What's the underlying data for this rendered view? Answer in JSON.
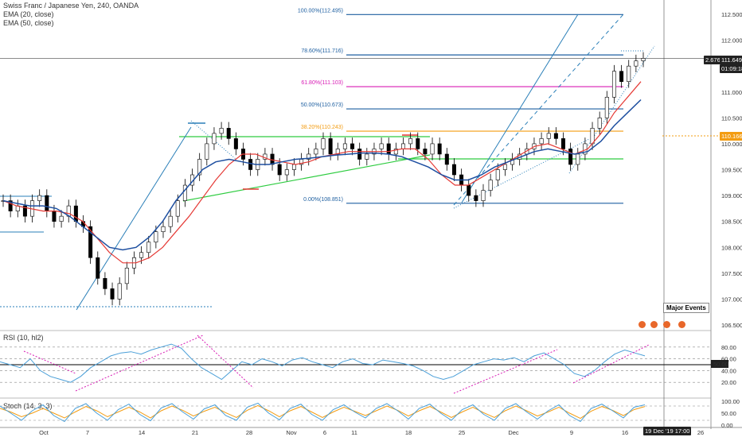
{
  "legend": {
    "symbol": "Swiss Franc / Japanese Yen, 240, OANDA",
    "ema20": "EMA (20, close)",
    "ema50": "EMA (50, close)",
    "rsi": "RSI (10, hl2)",
    "stoch": "Stoch (14, 3, 3)"
  },
  "price_badges": {
    "crosshair_price": "111.649",
    "crosshair_left": "2.676",
    "countdown": "01:09:18",
    "last_orange": "110.166"
  },
  "time_badge": "19 Dec '19   17:00",
  "major_events": "Major Events",
  "colors": {
    "up": "#000000",
    "down": "#000000",
    "ema20": "#e53935",
    "ema50": "#1e4fa0",
    "fib": "#1e5fa0",
    "fib618": "#d81bb5",
    "fib382": "#f39c12",
    "rsi": "#4a9fd8",
    "stoch_k": "#4a9fd8",
    "stoch_d": "#f39c12",
    "trend_green": "#2ecc40",
    "trend_blue": "#2a7fb8"
  },
  "chart_data": {
    "type": "candlestick",
    "title": "Swiss Franc / Japanese Yen, 240, OANDA",
    "ylim": [
      106.5,
      112.5
    ],
    "y_ticks": [
      "112.500",
      "112.000",
      "111.500",
      "111.000",
      "110.500",
      "110.000",
      "109.500",
      "109.000",
      "108.500",
      "108.000",
      "107.500",
      "107.000",
      "106.500"
    ],
    "x_tick_labels": [
      "Oct",
      "7",
      "14",
      "21",
      "28",
      "Nov",
      "6",
      "11",
      "18",
      "25",
      "Dec",
      "9",
      "16",
      "26"
    ],
    "fib_levels": [
      {
        "label": "100.00%(112.495)",
        "value": 112.495
      },
      {
        "label": "78.60%(111.716)",
        "value": 111.716
      },
      {
        "label": "61.80%(111.103)",
        "value": 111.103
      },
      {
        "label": "50.00%(110.673)",
        "value": 110.673
      },
      {
        "label": "38.20%(110.243)",
        "value": 110.243
      },
      {
        "label": "0.00%(108.851)",
        "value": 108.851
      }
    ],
    "series_close": [
      108.9,
      108.7,
      108.8,
      108.6,
      108.9,
      109.0,
      108.7,
      108.5,
      108.6,
      108.8,
      108.5,
      108.4,
      107.8,
      107.4,
      107.2,
      107.0,
      107.3,
      107.6,
      107.8,
      107.9,
      108.1,
      108.3,
      108.4,
      108.6,
      108.9,
      109.2,
      109.4,
      109.7,
      110.0,
      110.2,
      110.3,
      110.1,
      109.9,
      109.7,
      109.5,
      109.7,
      109.8,
      109.6,
      109.4,
      109.5,
      109.6,
      109.7,
      109.8,
      109.9,
      110.1,
      109.8,
      109.9,
      110.0,
      109.9,
      109.7,
      109.8,
      109.9,
      110.0,
      109.8,
      109.9,
      110.0,
      110.1,
      109.9,
      109.8,
      110.0,
      109.8,
      109.6,
      109.4,
      109.2,
      109.0,
      108.9,
      109.1,
      109.3,
      109.5,
      109.6,
      109.7,
      109.8,
      109.9,
      110.0,
      110.1,
      110.2,
      110.1,
      109.9,
      109.6,
      109.8,
      110.0,
      110.3,
      110.5,
      110.9,
      111.4,
      111.2,
      111.5,
      111.6,
      111.65
    ],
    "ema20": [
      108.9,
      108.8,
      108.75,
      108.7,
      108.7,
      108.65,
      108.5,
      108.2,
      107.9,
      107.7,
      107.7,
      107.8,
      108.0,
      108.3,
      108.6,
      108.95,
      109.3,
      109.6,
      109.8,
      109.8,
      109.7,
      109.65,
      109.6,
      109.65,
      109.75,
      109.8,
      109.85,
      109.85,
      109.85,
      109.85,
      109.9,
      109.9,
      109.7,
      109.4,
      109.2,
      109.2,
      109.35,
      109.5,
      109.65,
      109.8,
      109.95,
      110.0,
      109.9,
      109.8,
      109.9,
      110.2,
      110.6,
      110.9,
      111.2
    ],
    "ema50": [
      108.9,
      108.85,
      108.8,
      108.8,
      108.75,
      108.6,
      108.4,
      108.2,
      108.0,
      107.95,
      108.0,
      108.2,
      108.5,
      108.9,
      109.2,
      109.5,
      109.65,
      109.7,
      109.65,
      109.6,
      109.6,
      109.65,
      109.7,
      109.72,
      109.75,
      109.78,
      109.8,
      109.82,
      109.82,
      109.8,
      109.75,
      109.65,
      109.55,
      109.4,
      109.3,
      109.3,
      109.4,
      109.55,
      109.65,
      109.75,
      109.85,
      109.9,
      109.85,
      109.8,
      109.85,
      110.05,
      110.35,
      110.6,
      110.85
    ],
    "rsi_ylim": [
      0,
      100
    ],
    "rsi_ticks": [
      "80.00",
      "60.00",
      "40.00",
      "20.00"
    ],
    "rsi_current": "50.00",
    "rsi": [
      55,
      50,
      45,
      60,
      40,
      30,
      25,
      20,
      30,
      45,
      55,
      65,
      70,
      72,
      68,
      75,
      80,
      85,
      78,
      60,
      45,
      35,
      25,
      40,
      55,
      50,
      60,
      55,
      48,
      58,
      62,
      55,
      50,
      45,
      55,
      60,
      52,
      50,
      58,
      55,
      52,
      48,
      40,
      30,
      25,
      30,
      40,
      50,
      55,
      60,
      58,
      62,
      55,
      65,
      70,
      60,
      50,
      35,
      30,
      40,
      55,
      68,
      75,
      70,
      65
    ],
    "stoch_ticks": [
      "100.00",
      "50.00",
      "0.00"
    ],
    "stoch_k": [
      80,
      50,
      20,
      60,
      85,
      40,
      15,
      70,
      90,
      50,
      20,
      65,
      88,
      45,
      18,
      72,
      90,
      55,
      25,
      68,
      85,
      40,
      20,
      75,
      92,
      50,
      22,
      70,
      88,
      45,
      20,
      65,
      85,
      55,
      30,
      70,
      90,
      60,
      25,
      70,
      88,
      50,
      20,
      65,
      85,
      45,
      20,
      70,
      90,
      55,
      25,
      60,
      85,
      40,
      15,
      70,
      88,
      60,
      30,
      75,
      85
    ],
    "stoch_d": [
      70,
      55,
      35,
      50,
      70,
      50,
      30,
      55,
      78,
      60,
      35,
      55,
      75,
      55,
      30,
      60,
      80,
      62,
      38,
      58,
      75,
      52,
      32,
      62,
      82,
      60,
      35,
      60,
      78,
      55,
      32,
      55,
      75,
      58,
      40,
      60,
      80,
      62,
      38,
      60,
      78,
      55,
      32,
      55,
      75,
      52,
      32,
      60,
      80,
      60,
      38,
      55,
      75,
      50,
      28,
      58,
      78,
      62,
      40,
      65,
      78
    ]
  }
}
